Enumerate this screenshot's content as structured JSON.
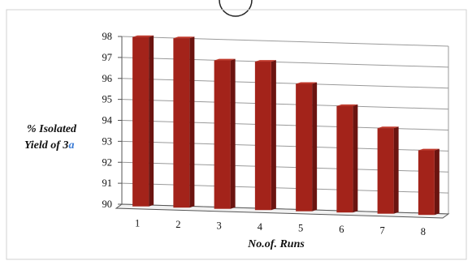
{
  "chart_data": {
    "type": "bar",
    "title": "",
    "xlabel": "No.of. Runs",
    "ylabel_parts": [
      "% Isolated",
      "Yield of 3",
      "a"
    ],
    "categories": [
      "1",
      "2",
      "3",
      "4",
      "5",
      "6",
      "7",
      "8"
    ],
    "values": [
      98,
      98,
      97,
      97,
      96,
      95,
      94,
      93
    ],
    "ylim": [
      90,
      98
    ],
    "yticks": [
      90,
      91,
      92,
      93,
      94,
      95,
      96,
      97,
      98
    ],
    "grid": true,
    "legend": "none",
    "style": "3d-column"
  },
  "colors": {
    "bar_front": "#a3231a",
    "bar_side": "#6b1410",
    "bar_top": "#c0392b",
    "grid": "#9a9a9a",
    "axis": "#555555",
    "accent_letter": "#3a7bd5"
  }
}
